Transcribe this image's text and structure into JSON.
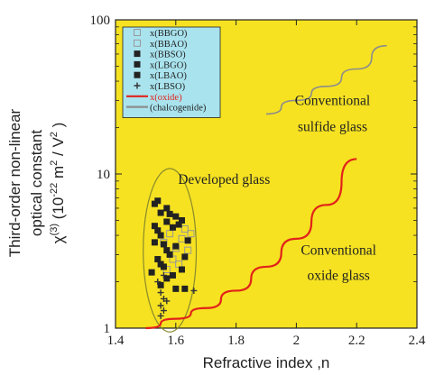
{
  "chart_data": {
    "type": "scatter",
    "title": "",
    "xlabel": "Refractive index ,n",
    "ylabel": {
      "line1": "Third-order non-linear",
      "line2": "optical constant",
      "line3_prefix": "χ",
      "line3_sup1": "(3)",
      "line3_mid": " (10",
      "line3_sup2": "-22",
      "line3_units": " m",
      "line3_sup3": "2",
      "line3_tail": " / V",
      "line3_sup4": "2",
      "line3_end": " )"
    },
    "xlim": [
      1.4,
      2.4
    ],
    "ylim": [
      1,
      100
    ],
    "yscale": "log",
    "xticks": [
      {
        "value": 1.4,
        "label": "1.4"
      },
      {
        "value": 1.6,
        "label": "1.6"
      },
      {
        "value": 1.8,
        "label": "1.8"
      },
      {
        "value": 2.0,
        "label": "2"
      },
      {
        "value": 2.2,
        "label": "2.2"
      },
      {
        "value": 2.4,
        "label": "2.4"
      }
    ],
    "yticks": [
      {
        "value": 1,
        "label": "1"
      },
      {
        "value": 10,
        "label": "10"
      },
      {
        "value": 100,
        "label": "100"
      }
    ],
    "background": "#f6e221",
    "legend": {
      "position": "top-left",
      "background": "#a9e3ee",
      "entries": [
        {
          "label": "x(BBGO)",
          "marker": "open-square",
          "color": "#999999"
        },
        {
          "label": "x(BBAO)",
          "marker": "open-square",
          "color": "#999999"
        },
        {
          "label": "x(BBSO)",
          "marker": "filled-square",
          "color": "#222222"
        },
        {
          "label": "x(LBGO)",
          "marker": "filled-square",
          "color": "#222222"
        },
        {
          "label": "x(LBAO)",
          "marker": "filled-square",
          "color": "#222222"
        },
        {
          "label": "x(LBSO)",
          "marker": "plus",
          "color": "#333333"
        },
        {
          "label": "x(oxide)",
          "marker": "line",
          "color": "#e2231a"
        },
        {
          "label": "(chalcogenide)",
          "marker": "line",
          "color": "#8c8c8c"
        }
      ]
    },
    "annotations": [
      {
        "text": [
          "Conventional",
          "sulfide glass"
        ],
        "x": 2.12,
        "y": [
          28,
          19
        ]
      },
      {
        "text": [
          "Developed glass"
        ],
        "x": 1.76,
        "y": [
          8.6
        ]
      },
      {
        "text": [
          "Conventional",
          "oxide glass"
        ],
        "x": 2.14,
        "y": [
          3.0,
          2.05
        ]
      }
    ],
    "series": [
      {
        "name": "x(oxide)",
        "kind": "line",
        "color": "#e2231a",
        "points": [
          [
            1.5,
            1.0
          ],
          [
            1.6,
            1.15
          ],
          [
            1.7,
            1.35
          ],
          [
            1.8,
            1.75
          ],
          [
            1.9,
            2.5
          ],
          [
            2.0,
            3.8
          ],
          [
            2.1,
            6.3
          ],
          [
            2.2,
            12.5
          ]
        ]
      },
      {
        "name": "(chalcogenide)",
        "kind": "line",
        "color": "#8c8c8c",
        "points": [
          [
            1.9,
            24.5
          ],
          [
            2.0,
            30.0
          ],
          [
            2.1,
            37.0
          ],
          [
            2.2,
            48.0
          ],
          [
            2.3,
            68.0
          ]
        ]
      },
      {
        "name": "x(BBGO)",
        "kind": "scatter",
        "marker": "open-square",
        "points": [
          [
            1.58,
            4.1
          ],
          [
            1.6,
            3.3
          ],
          [
            1.62,
            3.8
          ],
          [
            1.59,
            2.8
          ],
          [
            1.63,
            4.4
          ]
        ]
      },
      {
        "name": "x(BBAO)",
        "kind": "scatter",
        "marker": "open-square",
        "points": [
          [
            1.56,
            3.6
          ],
          [
            1.61,
            2.6
          ],
          [
            1.64,
            3.2
          ],
          [
            1.57,
            2.4
          ],
          [
            1.65,
            4.1
          ]
        ]
      },
      {
        "name": "x(BBSO)",
        "kind": "scatter",
        "marker": "filled-square",
        "points": [
          [
            1.53,
            6.4
          ],
          [
            1.55,
            5.6
          ],
          [
            1.57,
            4.9
          ],
          [
            1.54,
            4.3
          ],
          [
            1.56,
            3.5
          ],
          [
            1.58,
            3.0
          ],
          [
            1.55,
            2.6
          ],
          [
            1.52,
            2.3
          ],
          [
            1.57,
            2.1
          ],
          [
            1.6,
            1.8
          ]
        ]
      },
      {
        "name": "x(LBGO)",
        "kind": "scatter",
        "marker": "filled-square",
        "points": [
          [
            1.54,
            6.7
          ],
          [
            1.57,
            6.0
          ],
          [
            1.6,
            5.3
          ],
          [
            1.62,
            5.0
          ],
          [
            1.59,
            4.5
          ],
          [
            1.55,
            4.0
          ],
          [
            1.53,
            3.6
          ],
          [
            1.6,
            3.4
          ],
          [
            1.63,
            2.9
          ],
          [
            1.56,
            2.5
          ]
        ]
      },
      {
        "name": "x(LBAO)",
        "kind": "scatter",
        "marker": "filled-square",
        "points": [
          [
            1.58,
            5.5
          ],
          [
            1.61,
            4.7
          ],
          [
            1.53,
            4.6
          ],
          [
            1.64,
            3.7
          ],
          [
            1.57,
            3.2
          ],
          [
            1.54,
            2.8
          ],
          [
            1.62,
            2.4
          ],
          [
            1.59,
            2.2
          ],
          [
            1.55,
            1.9
          ],
          [
            1.63,
            1.8
          ]
        ]
      },
      {
        "name": "x(LBSO)",
        "kind": "scatter",
        "marker": "plus",
        "points": [
          [
            1.55,
            1.7
          ],
          [
            1.56,
            1.55
          ],
          [
            1.55,
            1.4
          ],
          [
            1.56,
            1.3
          ],
          [
            1.55,
            1.2
          ],
          [
            1.57,
            1.5
          ],
          [
            1.66,
            1.75
          ],
          [
            1.54,
            2.0
          ],
          [
            1.56,
            2.2
          ]
        ]
      }
    ],
    "ellipse": {
      "cx": 1.58,
      "cy": 3.2,
      "rx": 0.088,
      "ry_log": 0.53,
      "color": "#8a8a2a"
    }
  }
}
